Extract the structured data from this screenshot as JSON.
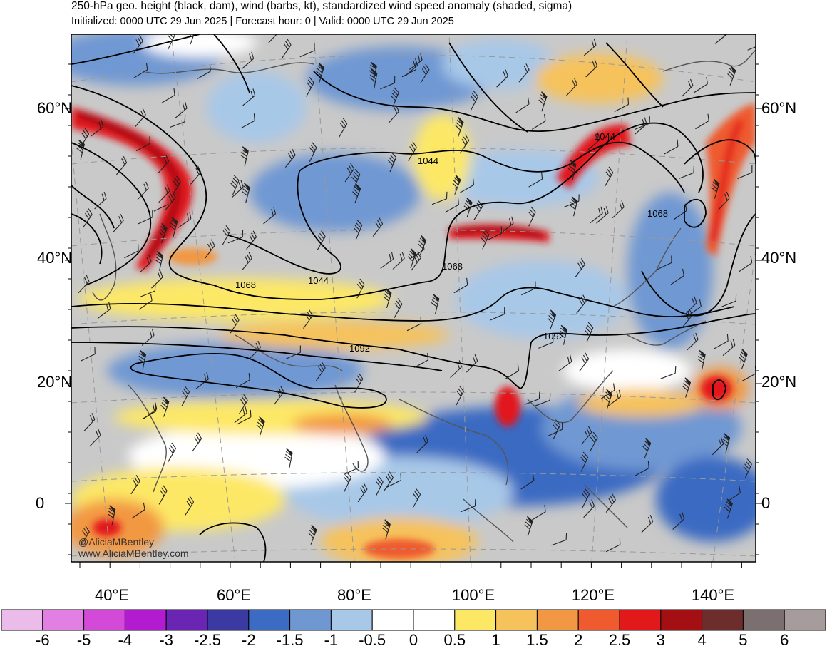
{
  "header": {
    "title": "250-hPa geo. height (black, dam), wind (barbs, kt), standardized wind speed anomaly (shaded, sigma)",
    "subtitle": "Initialized: 0000 UTC 29 Jun 2025 | Forecast hour: 0 | Valid: 0000 UTC 29 Jun 2025"
  },
  "map": {
    "lat_labels": [
      "60°N",
      "40°N",
      "20°N",
      "0"
    ],
    "lon_labels": [
      "40°E",
      "60°E",
      "80°E",
      "100°E",
      "120°E",
      "140°E"
    ],
    "contour_labels": [
      "1044",
      "1044",
      "1044",
      "1068",
      "1068",
      "1068",
      "1092",
      "1092"
    ],
    "credit": [
      "@AliciaMBentley",
      "www.AliciaMBentley.com"
    ]
  },
  "colorbar": {
    "labels": [
      "-6",
      "-5",
      "-4",
      "-3",
      "-2.5",
      "-2",
      "-1.5",
      "-1",
      "-0.5",
      "0",
      "0.5",
      "1",
      "1.5",
      "2",
      "2.5",
      "3",
      "4",
      "5",
      "6"
    ],
    "colors": [
      "#ebbce9",
      "#e27fe3",
      "#d44ad8",
      "#b21bcf",
      "#6a25b2",
      "#3b3aa3",
      "#3b6bc2",
      "#6f98d3",
      "#a8c8e8",
      "#ffffff",
      "#ffffff",
      "#fde866",
      "#f6c25c",
      "#f29743",
      "#ef5a2f",
      "#e2191b",
      "#a30f12",
      "#6e2d2d",
      "#7b6f6f",
      "#a79c9c"
    ]
  }
}
